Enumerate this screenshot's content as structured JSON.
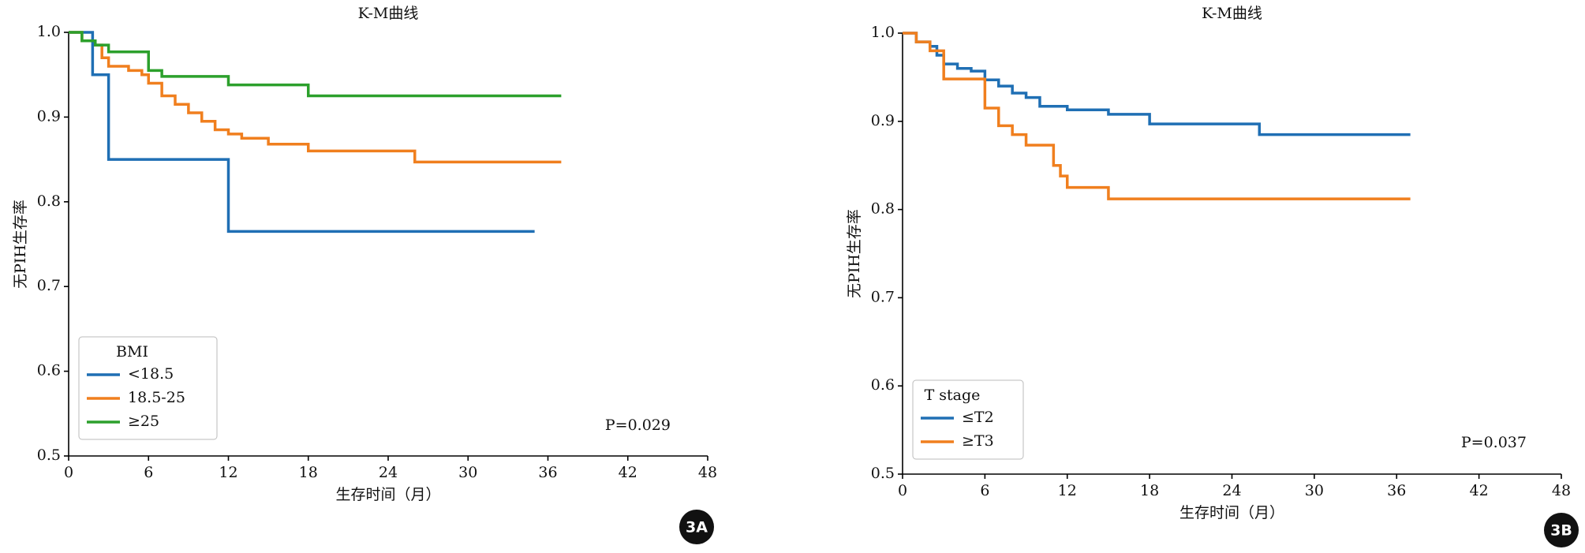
{
  "chart_data": [
    {
      "type": "step",
      "title": "K-M曲线",
      "xlabel": "生存时间（月）",
      "ylabel": "无PIH生存率",
      "xlim": [
        0,
        48
      ],
      "xticks": [
        0,
        6,
        12,
        18,
        24,
        30,
        36,
        42,
        48
      ],
      "ylim": [
        0.5,
        1.0
      ],
      "yticks": [
        {
          "value": 1.0,
          "label": "1.0"
        },
        0.9,
        0.8,
        0.7,
        0.6,
        0.5
      ],
      "legend_title": "BMI",
      "legend": "lower left",
      "annotation": "P=0.029",
      "panel_label": "3A",
      "series": [
        {
          "name": "<18.5",
          "color": "#1f6fb4",
          "x": [
            0,
            1.8,
            3,
            12,
            35
          ],
          "values": [
            1.0,
            0.95,
            0.85,
            0.765,
            0.765
          ]
        },
        {
          "name": "18.5-25",
          "color": "#f07f1e",
          "x": [
            0,
            1,
            2,
            2.5,
            3,
            4.5,
            5.5,
            6,
            7,
            8,
            9,
            10,
            11,
            12,
            13,
            15,
            18,
            26,
            37
          ],
          "values": [
            1.0,
            0.99,
            0.985,
            0.97,
            0.96,
            0.955,
            0.95,
            0.94,
            0.925,
            0.915,
            0.905,
            0.895,
            0.885,
            0.88,
            0.875,
            0.868,
            0.86,
            0.847,
            0.847
          ]
        },
        {
          "name": "≥25",
          "color": "#2ca02c",
          "x": [
            0,
            1,
            2,
            3,
            6,
            7,
            12,
            18,
            37
          ],
          "values": [
            1.0,
            0.99,
            0.985,
            0.977,
            0.955,
            0.948,
            0.938,
            0.925,
            0.925
          ]
        }
      ]
    },
    {
      "type": "step",
      "title": "K-M曲线",
      "xlabel": "生存时间（月）",
      "ylabel": "无PIH生存率",
      "xlim": [
        0,
        48
      ],
      "xticks": [
        0,
        6,
        12,
        18,
        24,
        30,
        36,
        42,
        48
      ],
      "ylim": [
        0.5,
        1.0
      ],
      "yticks": [
        {
          "value": 1.0,
          "label": "1.0"
        },
        0.9,
        0.8,
        0.7,
        0.6,
        0.5
      ],
      "legend_title": "T stage",
      "legend": "lower left",
      "annotation": "P=0.037",
      "panel_label": "3B",
      "series": [
        {
          "name": "≤T2",
          "color": "#1f6fb4",
          "x": [
            0,
            1,
            2,
            2.5,
            3,
            4,
            5,
            6,
            7,
            8,
            9,
            10,
            12,
            15,
            18,
            26,
            37
          ],
          "values": [
            1.0,
            0.99,
            0.985,
            0.975,
            0.965,
            0.96,
            0.957,
            0.947,
            0.94,
            0.932,
            0.927,
            0.917,
            0.913,
            0.908,
            0.897,
            0.885,
            0.885
          ]
        },
        {
          "name": "≥T3",
          "color": "#f07f1e",
          "x": [
            0,
            1,
            2,
            3,
            6,
            7,
            8,
            9,
            11,
            11.5,
            12,
            15,
            37
          ],
          "values": [
            1.0,
            0.99,
            0.98,
            0.948,
            0.915,
            0.895,
            0.885,
            0.873,
            0.85,
            0.838,
            0.825,
            0.812,
            0.812
          ]
        }
      ]
    }
  ]
}
